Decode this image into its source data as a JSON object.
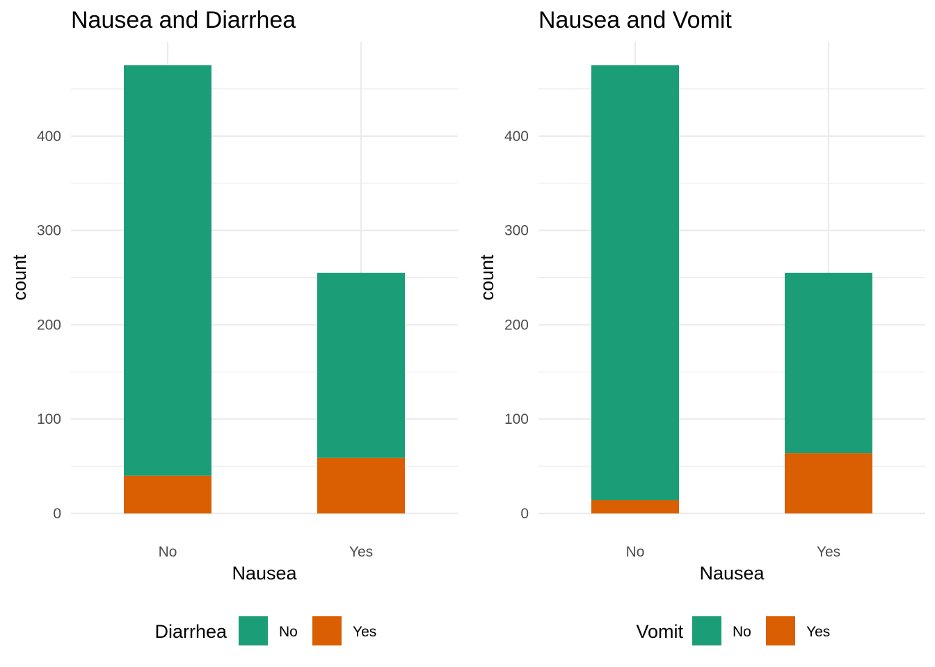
{
  "chart_data": [
    {
      "type": "bar",
      "stacked": true,
      "title": "Nausea and Diarrhea",
      "xlabel": "Nausea",
      "ylabel": "count",
      "categories": [
        "No",
        "Yes"
      ],
      "series": [
        {
          "name": "No",
          "values": [
            435,
            196
          ],
          "color": "#1b9e77"
        },
        {
          "name": "Yes",
          "values": [
            40,
            59
          ],
          "color": "#d95f02"
        }
      ],
      "yticks": [
        0,
        100,
        200,
        300,
        400
      ],
      "ylim": [
        0,
        475
      ],
      "grid": true,
      "legend": {
        "title": "Diarrhea",
        "position": "bottom",
        "entries": [
          "No",
          "Yes"
        ]
      }
    },
    {
      "type": "bar",
      "stacked": true,
      "title": "Nausea and Vomit",
      "xlabel": "Nausea",
      "ylabel": "count",
      "categories": [
        "No",
        "Yes"
      ],
      "series": [
        {
          "name": "No",
          "values": [
            461,
            191
          ],
          "color": "#1b9e77"
        },
        {
          "name": "Yes",
          "values": [
            14,
            64
          ],
          "color": "#d95f02"
        }
      ],
      "yticks": [
        0,
        100,
        200,
        300,
        400
      ],
      "ylim": [
        0,
        475
      ],
      "grid": true,
      "legend": {
        "title": "Vomit",
        "position": "bottom",
        "entries": [
          "No",
          "Yes"
        ]
      }
    }
  ]
}
